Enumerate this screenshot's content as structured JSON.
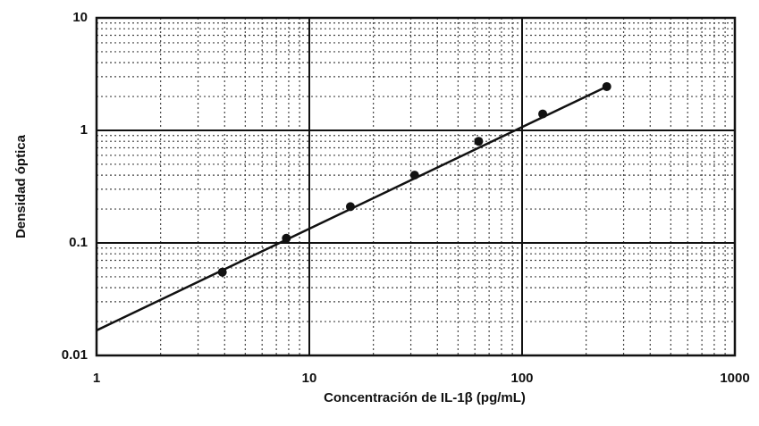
{
  "chart_data": {
    "type": "scatter",
    "x_label": "Concentración de IL-1β (pg/mL)",
    "y_label": "Densidad óptica",
    "x": [
      3.9,
      7.8,
      15.6,
      31.25,
      62.5,
      125,
      250
    ],
    "values": [
      0.055,
      0.11,
      0.21,
      0.4,
      0.8,
      1.4,
      2.45
    ],
    "color": "#111111",
    "fit": {
      "x": [
        1,
        250
      ],
      "values": [
        0.0167,
        2.45
      ]
    },
    "xlim": [
      1,
      1000
    ],
    "ylim": [
      0.01,
      10
    ],
    "xticks": [
      1,
      10,
      100,
      1000
    ],
    "yticks": [
      0.01,
      0.1,
      1,
      10
    ],
    "xscale": "log",
    "yscale": "log",
    "grid": true,
    "minor_grid": true
  }
}
